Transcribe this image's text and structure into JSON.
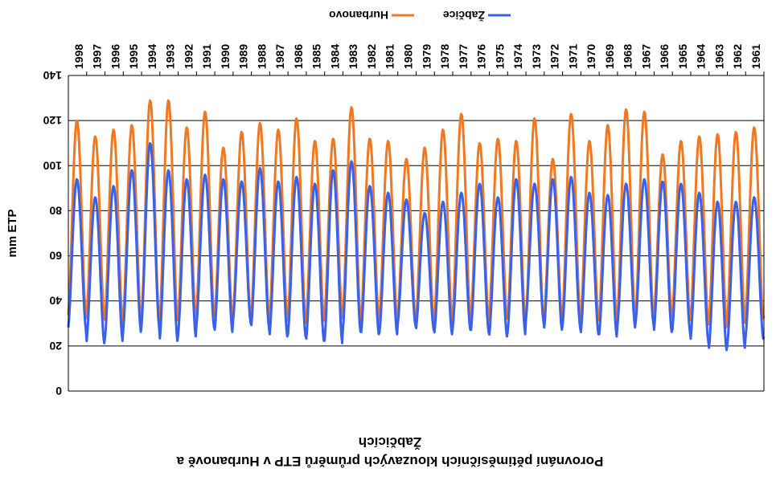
{
  "chart_data": {
    "type": "line",
    "title": [
      "Porovnání pětiměsíčních klouzavých průměrů ETP v Hurbanově a",
      "Žabčicích"
    ],
    "xlabel": "",
    "ylabel": "mm ETP",
    "ylim": [
      0,
      140
    ],
    "yticks": [
      0,
      20,
      40,
      60,
      80,
      100,
      120,
      140
    ],
    "x_start": 1961,
    "x_end": 1999,
    "x_tick_labels": [
      "1961",
      "1962",
      "1963",
      "1964",
      "1965",
      "1966",
      "1967",
      "1968",
      "1969",
      "1970",
      "1971",
      "1972",
      "1973",
      "1974",
      "1975",
      "1976",
      "1977",
      "1978",
      "1979",
      "1980",
      "1981",
      "1982",
      "1983",
      "1984",
      "1985",
      "1986",
      "1987",
      "1988",
      "1989",
      "1990",
      "1991",
      "1992",
      "1993",
      "1994",
      "1995",
      "1996",
      "1997",
      "1998"
    ],
    "grid": true,
    "legend_position": "bottom",
    "series": [
      {
        "name": "Hurbanovo",
        "color": "#f07820",
        "annual_peaks": [
          117,
          115,
          114,
          113,
          111,
          105,
          124,
          125,
          118,
          111,
          123,
          103,
          121,
          111,
          112,
          110,
          123,
          116,
          108,
          103,
          111,
          112,
          126,
          112,
          111,
          121,
          116,
          119,
          115,
          108,
          124,
          117,
          129,
          129,
          118,
          116,
          113,
          120,
          120
        ],
        "annual_troughs": [
          32,
          30,
          28,
          30,
          32,
          32,
          33,
          31,
          30,
          31,
          32,
          32,
          30,
          31,
          32,
          31,
          32,
          30,
          30,
          32,
          31,
          31,
          31,
          32,
          31,
          30,
          31,
          32,
          31,
          32,
          33,
          30,
          31,
          30,
          31,
          30,
          32,
          32,
          32
        ]
      },
      {
        "name": "Žabčice",
        "color": "#3a62e8",
        "annual_peaks": [
          86,
          84,
          84,
          88,
          92,
          93,
          94,
          92,
          87,
          88,
          95,
          94,
          92,
          94,
          86,
          92,
          88,
          84,
          79,
          85,
          88,
          91,
          102,
          98,
          92,
          95,
          93,
          99,
          93,
          94,
          96,
          94,
          98,
          110,
          98,
          91,
          86,
          94,
          94
        ],
        "annual_troughs": [
          23,
          19,
          18,
          22,
          26,
          26,
          30,
          28,
          24,
          25,
          28,
          27,
          31,
          25,
          24,
          26,
          27,
          25,
          27,
          29,
          25,
          25,
          26,
          21,
          22,
          24,
          24,
          28,
          30,
          26,
          28,
          24,
          22,
          28,
          26,
          22,
          21,
          27,
          27
        ]
      }
    ]
  }
}
